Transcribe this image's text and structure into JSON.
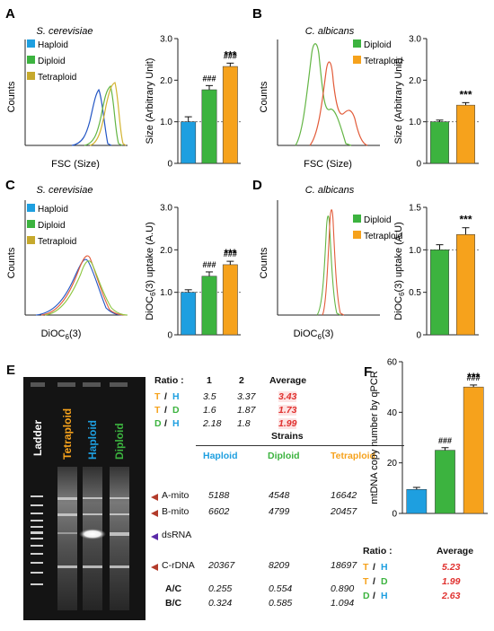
{
  "colors": {
    "haploid": "#1e9fe0",
    "diploid": "#3cb33f",
    "tetraploid": "#f6a21c",
    "haploid_line": "#2255c4",
    "diploid_line": "#63b544",
    "tetraploid_line": "#d3b431",
    "tetraploid_calb_line": "#e25b39",
    "ratio_red": "#e0312f",
    "arrow_red": "#b23b2b",
    "arrow_purple": "#5a2aa8"
  },
  "panel_A": {
    "letter": "A",
    "species": "S. cerevisiae",
    "legend": [
      "Haploid",
      "Diploid",
      "Tetraploid"
    ],
    "hist_ylabel": "Counts",
    "hist_xlabel": "FSC (Size)",
    "chart_data": {
      "type": "bar",
      "categories": [
        "Haploid",
        "Diploid",
        "Tetraploid"
      ],
      "values": [
        1.0,
        1.77,
        2.33
      ],
      "errors": [
        0.12,
        0.1,
        0.08
      ],
      "ylabel": "Size (Arbitrary Unit)",
      "ylim": [
        0,
        3
      ],
      "yticks": [
        "0",
        "1.0",
        "2.0",
        "3.0"
      ],
      "annotations": [
        {
          "bar": 1,
          "text": "###"
        },
        {
          "bar": 2,
          "text": "###"
        },
        {
          "bar": 2,
          "text": "***"
        }
      ]
    }
  },
  "panel_B": {
    "letter": "B",
    "species": "C. albicans",
    "legend": [
      "Diploid",
      "Tetraploid"
    ],
    "hist_ylabel": "Counts",
    "hist_xlabel": "FSC (Size)",
    "chart_data": {
      "type": "bar",
      "categories": [
        "Diploid",
        "Tetraploid"
      ],
      "values": [
        1.0,
        1.4
      ],
      "errors": [
        0.04,
        0.06
      ],
      "ylabel": "Size (Arbitrary Unit)",
      "ylim": [
        0,
        3
      ],
      "yticks": [
        "0",
        "1.0",
        "2.0",
        "3.0"
      ],
      "annotations": [
        {
          "bar": 1,
          "text": "***"
        }
      ]
    }
  },
  "panel_C": {
    "letter": "C",
    "species": "S. cerevisiae",
    "legend": [
      "Haploid",
      "Diploid",
      "Tetraploid"
    ],
    "hist_ylabel": "Counts",
    "hist_xlabel": "DiOC6(3)",
    "chart_data": {
      "type": "bar",
      "categories": [
        "Haploid",
        "Diploid",
        "Tetraploid"
      ],
      "values": [
        1.0,
        1.38,
        1.65
      ],
      "errors": [
        0.06,
        0.1,
        0.08
      ],
      "ylabel": "DiOC6(3) uptake (A.U)",
      "ylim": [
        0,
        3
      ],
      "yticks": [
        "0",
        "1.0",
        "2.0",
        "3.0"
      ],
      "annotations": [
        {
          "bar": 1,
          "text": "###"
        },
        {
          "bar": 2,
          "text": "###"
        },
        {
          "bar": 2,
          "text": "***"
        }
      ]
    }
  },
  "panel_D": {
    "letter": "D",
    "species": "C. albicans",
    "legend": [
      "Diploid",
      "Tetraploid"
    ],
    "hist_ylabel": "Counts",
    "hist_xlabel": "DiOC6(3)",
    "chart_data": {
      "type": "bar",
      "categories": [
        "Diploid",
        "Tetraploid"
      ],
      "values": [
        1.0,
        1.18
      ],
      "errors": [
        0.06,
        0.08
      ],
      "ylabel": "DiOC6(3) uptake (A.U)",
      "ylim": [
        0,
        1.5
      ],
      "yticks": [
        "0",
        "0.5",
        "1.0",
        "1.5"
      ],
      "annotations": [
        {
          "bar": 1,
          "text": "***"
        }
      ]
    }
  },
  "panel_E": {
    "letter": "E",
    "gel_lanes": [
      "Ladder",
      "Tetraploid",
      "Haploid",
      "Diploid"
    ],
    "ratio_header": [
      "Ratio :",
      "1",
      "2",
      "Average"
    ],
    "ratios": [
      {
        "a": "T",
        "b": "H",
        "v1": "3.5",
        "v2": "3.37",
        "avg": "3.43"
      },
      {
        "a": "T",
        "b": "D",
        "v1": "1.6",
        "v2": "1.87",
        "avg": "1.73"
      },
      {
        "a": "D",
        "b": "H",
        "v1": "2.18",
        "v2": "1.8",
        "avg": "1.99"
      }
    ],
    "strains_title": "Strains",
    "strain_cols": [
      "Haploid",
      "Diploid",
      "Tetraploid"
    ],
    "bands": [
      {
        "label": "A-mito",
        "vals": [
          "5188",
          "4548",
          "16642"
        ]
      },
      {
        "label": "B-mito",
        "vals": [
          "6602",
          "4799",
          "20457"
        ]
      },
      {
        "label": "dsRNA",
        "vals": [
          "",
          "",
          ""
        ]
      },
      {
        "label": "C-rDNA",
        "vals": [
          "20367",
          "8209",
          "18697"
        ]
      }
    ],
    "ratio_rows": [
      {
        "label": "A/C",
        "vals": [
          "0.255",
          "0.554",
          "0.890"
        ]
      },
      {
        "label": "B/C",
        "vals": [
          "0.324",
          "0.585",
          "1.094"
        ]
      }
    ]
  },
  "panel_F": {
    "letter": "F",
    "chart_data": {
      "type": "bar",
      "categories": [
        "Haploid",
        "Diploid",
        "Tetraploid"
      ],
      "values": [
        9.5,
        25,
        50
      ],
      "errors": [
        0.8,
        1.0,
        0.8
      ],
      "ylabel": "mtDNA copy number by qPCR",
      "ylim": [
        0,
        60
      ],
      "yticks": [
        "0",
        "20",
        "40",
        "60"
      ],
      "annotations": [
        {
          "bar": 1,
          "text": "###"
        },
        {
          "bar": 2,
          "text": "###"
        },
        {
          "bar": 2,
          "text": "***"
        }
      ]
    },
    "ratio_header": [
      "Ratio :",
      "Average"
    ],
    "ratios": [
      {
        "a": "T",
        "b": "H",
        "avg": "5.23"
      },
      {
        "a": "T",
        "b": "D",
        "avg": "1.99"
      },
      {
        "a": "D",
        "b": "H",
        "avg": "2.63"
      }
    ]
  }
}
